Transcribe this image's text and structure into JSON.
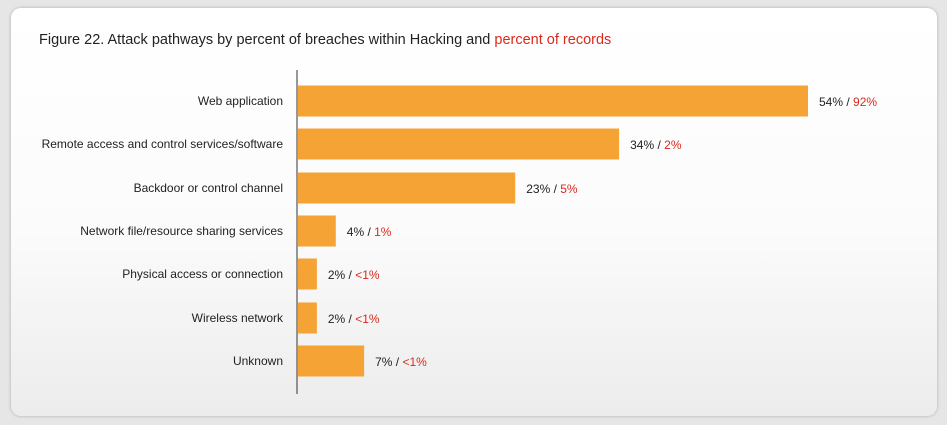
{
  "chart_data": {
    "type": "bar",
    "orientation": "horizontal",
    "title": {
      "main": "Figure 22. Attack pathways by percent of breaches within Hacking and",
      "highlight": "percent of records"
    },
    "categories": [
      "Web application",
      "Remote access and control services/software",
      "Backdoor or control channel",
      "Network file/resource sharing services",
      "Physical access or connection",
      "Wireless network",
      "Unknown"
    ],
    "series": [
      {
        "values": [
          54,
          34,
          23,
          4,
          2,
          2,
          7
        ],
        "color": "#f5a334"
      },
      {
        "values": [
          "92%",
          "2%",
          "5%",
          "1%",
          "<1%",
          "<1%",
          "<1%"
        ],
        "color": "#d92a1c"
      }
    ],
    "labels_primary": [
      "54%",
      "34%",
      "23%",
      "4%",
      "2%",
      "2%",
      "7%"
    ],
    "separator": " / ",
    "xlim": [
      0,
      54
    ],
    "grid": false,
    "legend": "none"
  }
}
